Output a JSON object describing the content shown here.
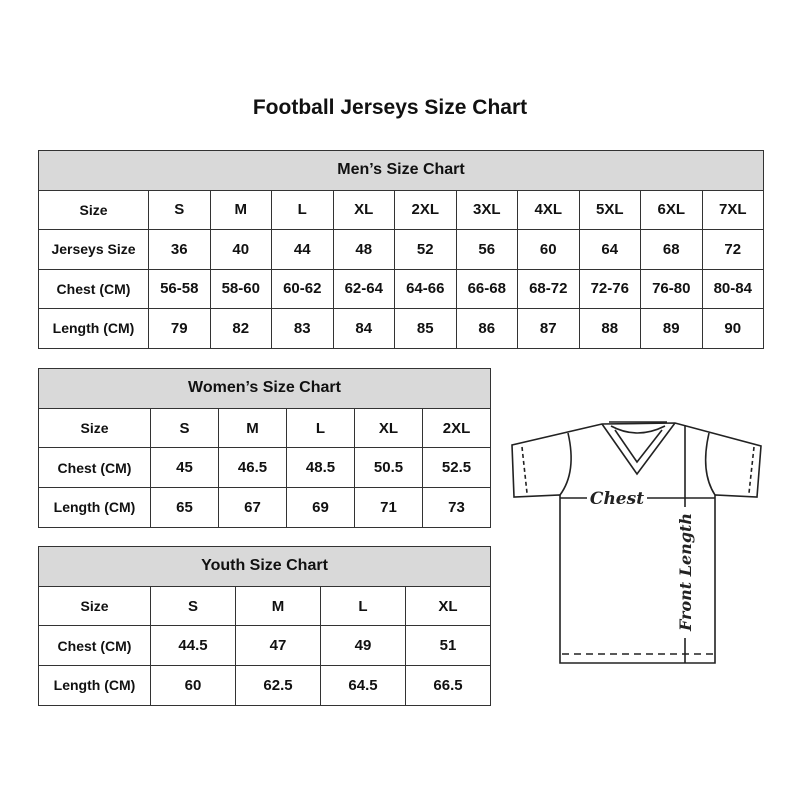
{
  "title": "Football Jerseys Size Chart",
  "men": {
    "heading": "Men’s Size Chart",
    "rows": [
      [
        "Size",
        "S",
        "M",
        "L",
        "XL",
        "2XL",
        "3XL",
        "4XL",
        "5XL",
        "6XL",
        "7XL"
      ],
      [
        "Jerseys Size",
        "36",
        "40",
        "44",
        "48",
        "52",
        "56",
        "60",
        "64",
        "68",
        "72"
      ],
      [
        "Chest (CM)",
        "56-58",
        "58-60",
        "60-62",
        "62-64",
        "64-66",
        "66-68",
        "68-72",
        "72-76",
        "76-80",
        "80-84"
      ],
      [
        "Length (CM)",
        "79",
        "82",
        "83",
        "84",
        "85",
        "86",
        "87",
        "88",
        "89",
        "90"
      ]
    ]
  },
  "women": {
    "heading": "Women’s Size Chart",
    "rows": [
      [
        "Size",
        "S",
        "M",
        "L",
        "XL",
        "2XL"
      ],
      [
        "Chest (CM)",
        "45",
        "46.5",
        "48.5",
        "50.5",
        "52.5"
      ],
      [
        "Length (CM)",
        "65",
        "67",
        "69",
        "71",
        "73"
      ]
    ]
  },
  "youth": {
    "heading": "Youth Size Chart",
    "rows": [
      [
        "Size",
        "S",
        "M",
        "L",
        "XL"
      ],
      [
        "Chest (CM)",
        "44.5",
        "47",
        "49",
        "51"
      ],
      [
        "Length (CM)",
        "60",
        "62.5",
        "64.5",
        "66.5"
      ]
    ]
  },
  "diagram": {
    "chest_label": "Chest",
    "length_label": "Front Length"
  },
  "colors": {
    "header_fill": "#d9d9d9",
    "border": "#333333"
  }
}
